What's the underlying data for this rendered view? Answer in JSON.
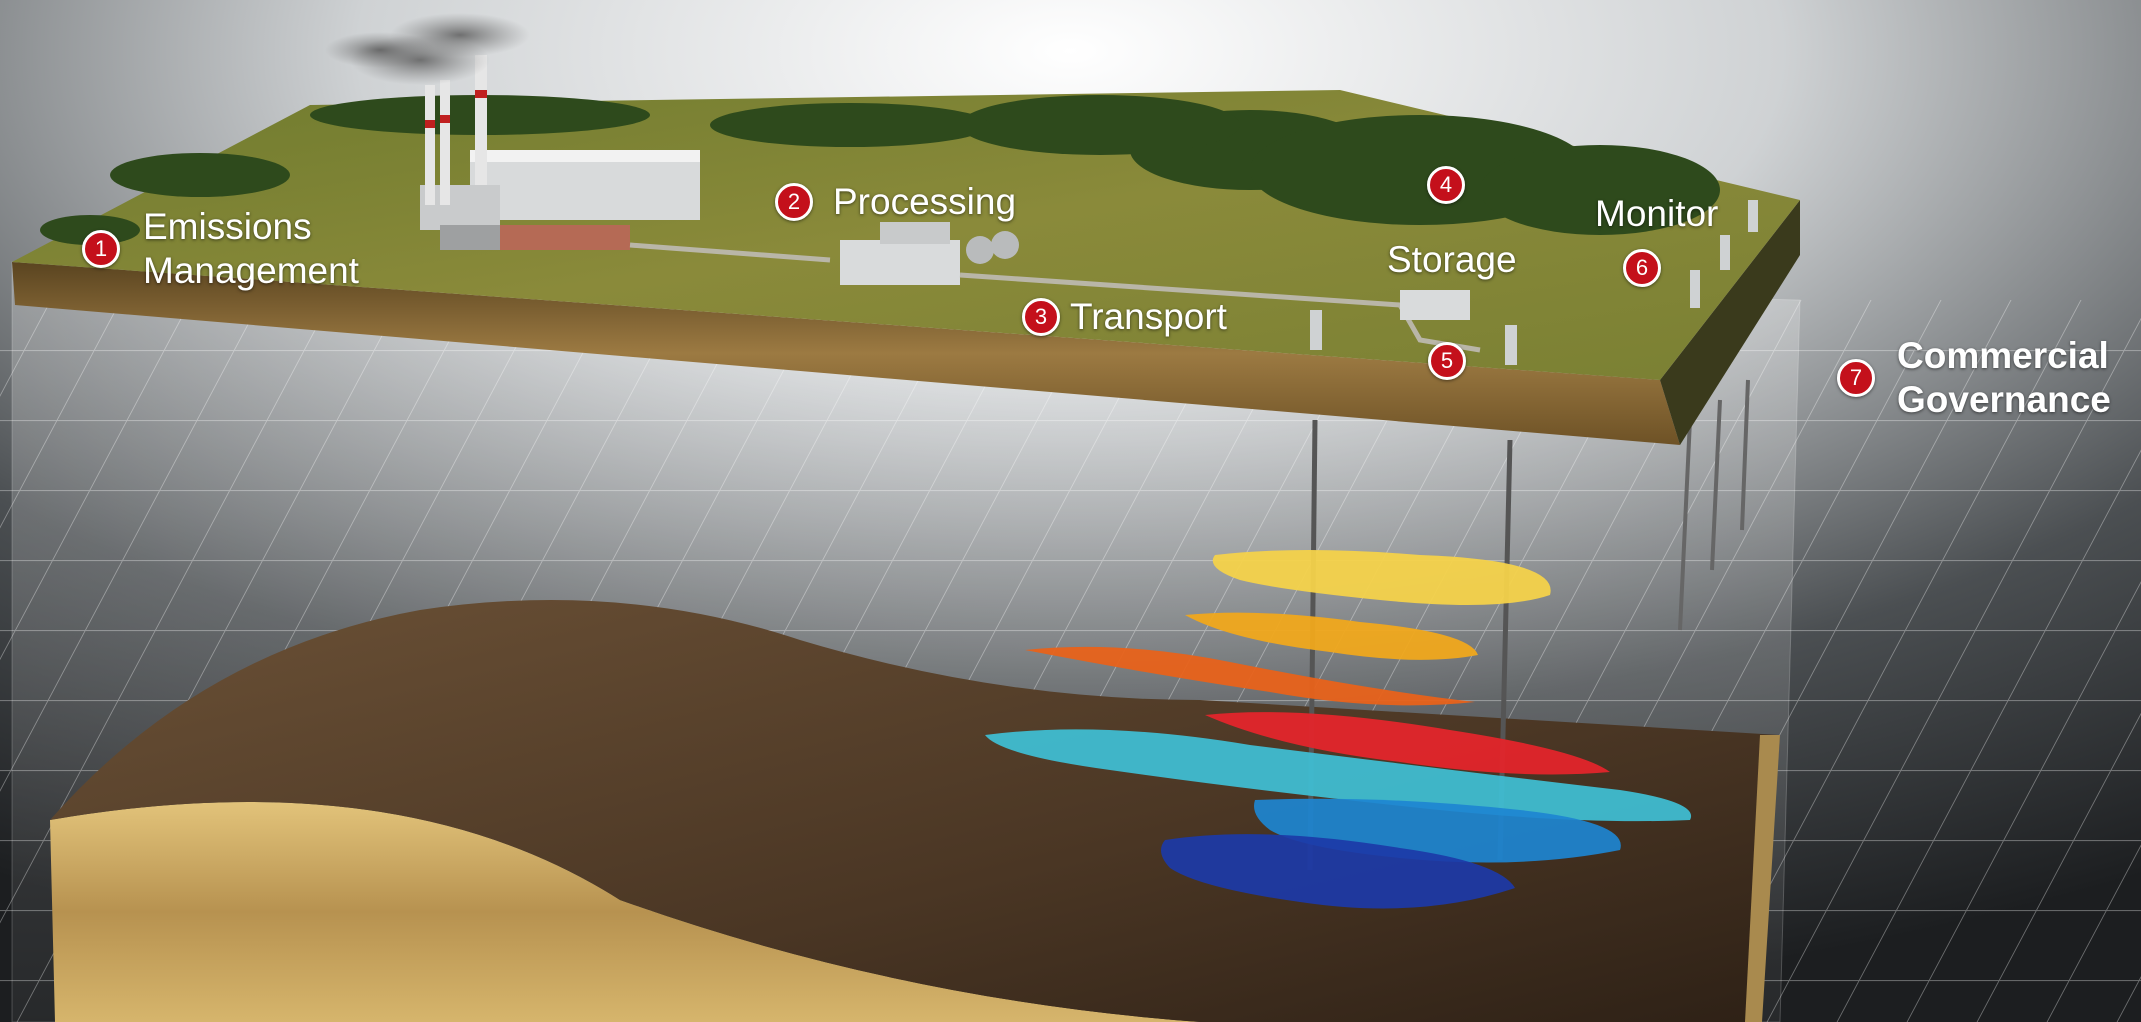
{
  "colors": {
    "marker_fill": "#c4101b",
    "marker_border": "#ffffff",
    "label_text": "#ffffff",
    "layer_1": "#f4d24a",
    "layer_2": "#f0a81c",
    "layer_3": "#e8621a",
    "layer_4": "#e3252b",
    "layer_5": "#3fc0d6",
    "layer_6": "#1d86d1",
    "layer_7": "#1c3aa8"
  },
  "callouts": [
    {
      "number": "1",
      "label": "Emissions Management"
    },
    {
      "number": "2",
      "label": "Processing"
    },
    {
      "number": "3",
      "label": "Transport"
    },
    {
      "number": "4",
      "label": "Storage"
    },
    {
      "number": "5",
      "label": ""
    },
    {
      "number": "6",
      "label": "Monitor"
    },
    {
      "number": "7",
      "label": "Commercial Governance"
    }
  ]
}
